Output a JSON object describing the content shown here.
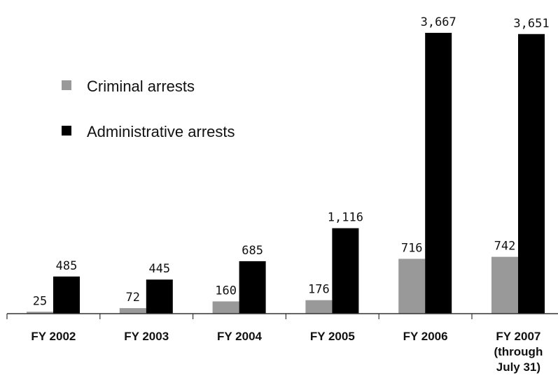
{
  "chart_data": {
    "type": "bar",
    "categories": [
      [
        "FY 2002"
      ],
      [
        "FY 2003"
      ],
      [
        "FY 2004"
      ],
      [
        "FY 2005"
      ],
      [
        "FY 2006"
      ],
      [
        "FY 2007",
        "(through",
        "July 31)"
      ]
    ],
    "series": [
      {
        "name": "Criminal arrests",
        "color": "#999999",
        "values": [
          25,
          72,
          160,
          176,
          716,
          742
        ],
        "labels": [
          "25",
          "72",
          "160",
          "176",
          "716",
          "742"
        ]
      },
      {
        "name": "Administrative arrests",
        "color": "#000000",
        "values": [
          485,
          445,
          685,
          1116,
          3667,
          3651
        ],
        "labels": [
          "485",
          "445",
          "685",
          "1,116",
          "3,667",
          "3,651"
        ]
      }
    ],
    "ylim": [
      0,
      3667
    ],
    "grid": false,
    "legend": "top-left",
    "title": "",
    "xlabel": "",
    "ylabel": ""
  }
}
